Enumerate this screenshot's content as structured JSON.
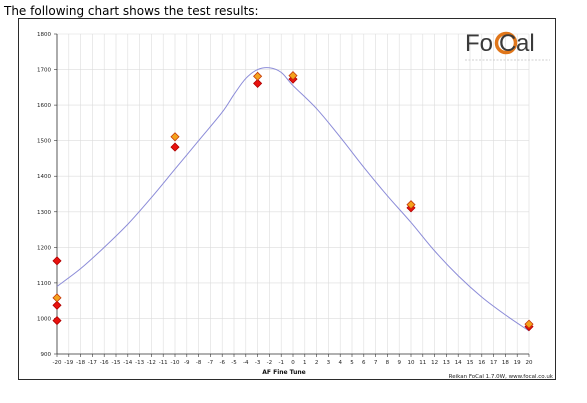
{
  "caption": "The following chart shows the test results:",
  "logo": {
    "part1": "Fo",
    "part2": "al",
    "ring_color": "#e0761a"
  },
  "credit": "Reikan FoCal 1.7.0W, www.focal.co.uk",
  "chart_data": {
    "type": "scatter",
    "xlabel": "AF Fine Tune",
    "ylabel": "",
    "xlim": [
      -20,
      20
    ],
    "ylim": [
      900,
      1800
    ],
    "x_ticks": [
      -20,
      -19,
      -18,
      -17,
      -16,
      -15,
      -14,
      -13,
      -12,
      -11,
      -10,
      -9,
      -8,
      -7,
      -6,
      -5,
      -4,
      -3,
      -2,
      -1,
      0,
      1,
      2,
      3,
      4,
      5,
      6,
      7,
      8,
      9,
      10,
      11,
      12,
      13,
      14,
      15,
      16,
      17,
      18,
      19,
      20
    ],
    "y_ticks": [
      900,
      1000,
      1100,
      1200,
      1300,
      1400,
      1500,
      1600,
      1700,
      1800
    ],
    "grid": true,
    "colors": {
      "curve": "#8c8cd8",
      "red_marker": "#e8120e",
      "orange_marker": "#f4a21c",
      "grid": "#dcdcdc",
      "axis": "#333333"
    },
    "curve": {
      "x": [
        -20,
        -18,
        -16,
        -14,
        -12,
        -10,
        -8,
        -6,
        -5,
        -4,
        -3,
        -2,
        -1,
        0,
        2,
        4,
        6,
        8,
        10,
        12,
        14,
        16,
        18,
        20
      ],
      "y": [
        1090,
        1140,
        1200,
        1265,
        1340,
        1420,
        1500,
        1580,
        1630,
        1675,
        1700,
        1705,
        1692,
        1655,
        1590,
        1510,
        1425,
        1345,
        1270,
        1190,
        1120,
        1060,
        1010,
        965
      ]
    },
    "series": [
      {
        "marker": "red",
        "points": [
          [
            -20,
            1162
          ],
          [
            -20,
            1037
          ],
          [
            -20,
            994
          ],
          [
            -10,
            1482
          ],
          [
            -3,
            1661
          ],
          [
            0,
            1673
          ],
          [
            10,
            1311
          ],
          [
            20,
            977
          ]
        ]
      },
      {
        "marker": "orange",
        "points": [
          [
            -20,
            1058
          ],
          [
            -10,
            1511
          ],
          [
            -3,
            1681
          ],
          [
            0,
            1683
          ],
          [
            10,
            1320
          ],
          [
            20,
            984
          ]
        ]
      }
    ]
  }
}
